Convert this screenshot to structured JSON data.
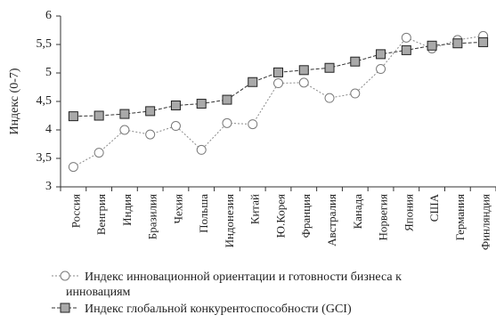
{
  "chart_data": {
    "type": "line",
    "ylabel": "Индекс (0-7)",
    "xlabel": "",
    "ylim": [
      3,
      6
    ],
    "yticks": [
      "3",
      "3,5",
      "4",
      "4,5",
      "5",
      "5,5",
      "6"
    ],
    "ytick_values": [
      3,
      3.5,
      4,
      4.5,
      5,
      5.5,
      6
    ],
    "grid": false,
    "legend_position": "bottom",
    "categories": [
      "Россия",
      "Венгрия",
      "Индия",
      "Бразилия",
      "Чехия",
      "Польша",
      "Индонезия",
      "Китай",
      "Ю.Корея",
      "Франция",
      "Австралия",
      "Канада",
      "Норвегия",
      "Япония",
      "США",
      "Германия",
      "Финляндия"
    ],
    "series": [
      {
        "name": "Индекс инновационной ориентации и готовности бизнеса к инновациям",
        "legend_lines": [
          "Индекс инновационной ориентации и готовности бизнеса к",
          "инновациям"
        ],
        "marker": "circle",
        "line_style": "dotted",
        "color": "#8a8a8a",
        "values": [
          3.35,
          3.6,
          4.0,
          3.92,
          4.07,
          3.65,
          4.12,
          4.1,
          4.82,
          4.83,
          4.56,
          4.64,
          5.07,
          5.62,
          5.43,
          5.58,
          5.65
        ]
      },
      {
        "name": "Индекс глобальной конкурентоспособности (GCI)",
        "legend_lines": [
          "Индекс глобальной конкурентоспособности (GCI)"
        ],
        "marker": "square",
        "line_style": "dashed",
        "color": "#333333",
        "values": [
          4.24,
          4.25,
          4.28,
          4.33,
          4.43,
          4.46,
          4.53,
          4.84,
          5.01,
          5.05,
          5.09,
          5.2,
          5.33,
          5.4,
          5.48,
          5.52,
          5.54
        ]
      }
    ]
  }
}
